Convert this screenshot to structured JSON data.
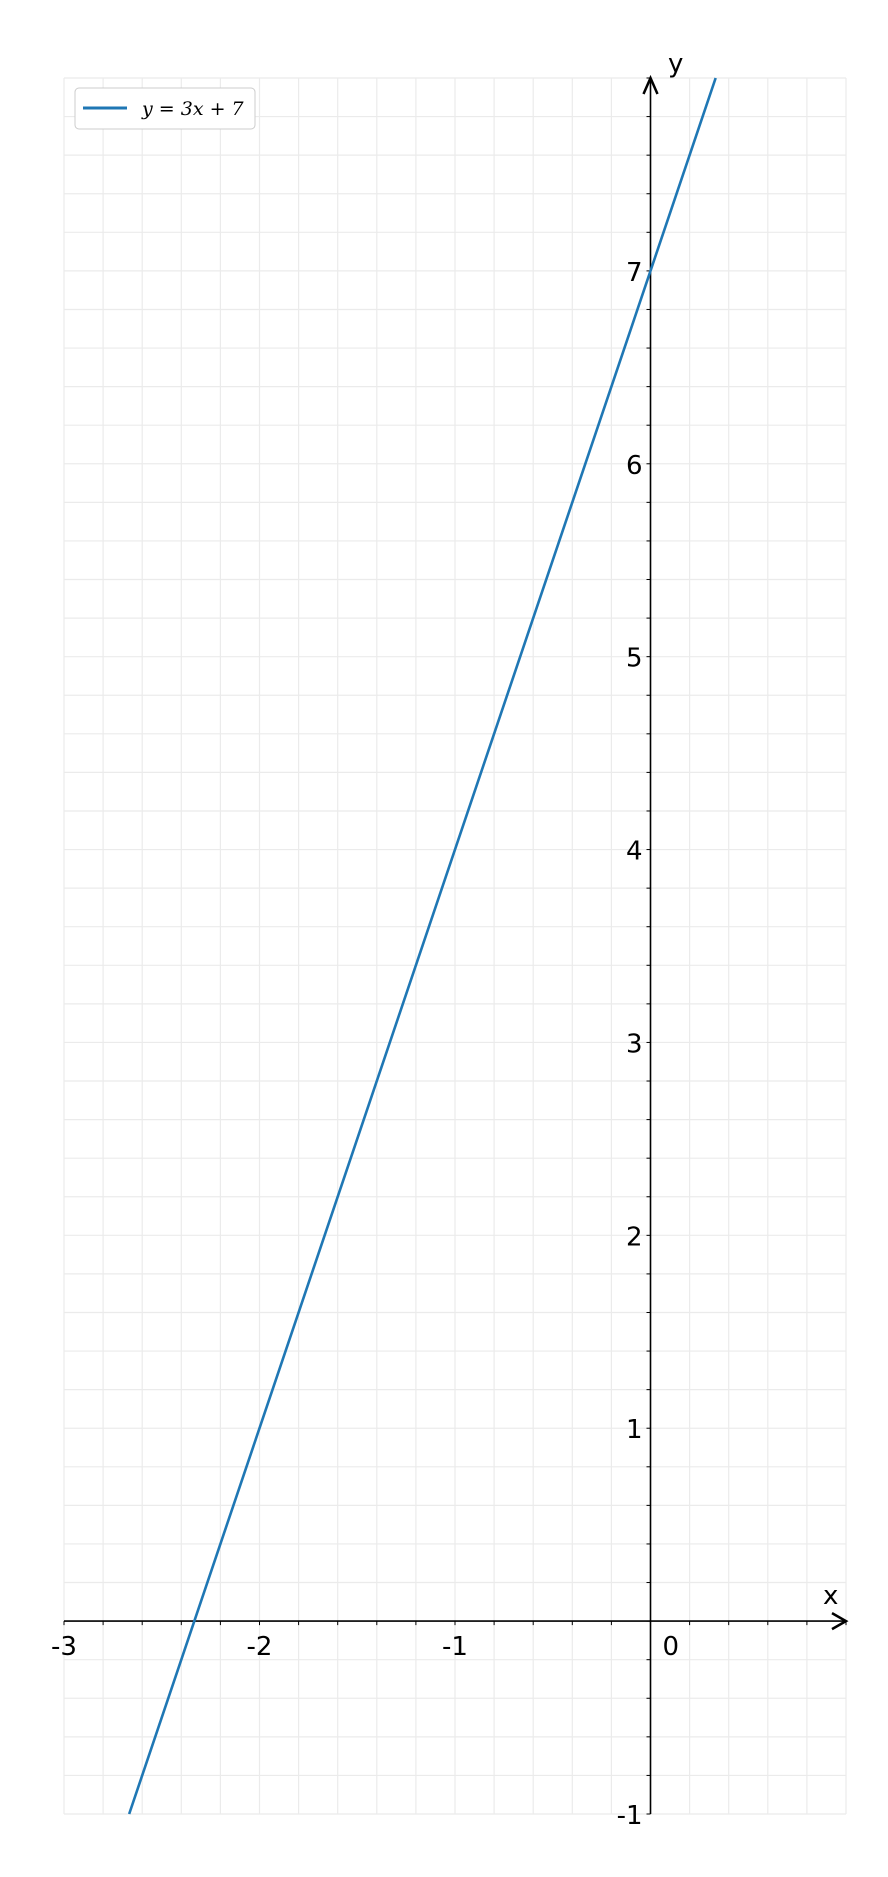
{
  "chart_data": {
    "type": "line",
    "title": "",
    "xlabel": "x",
    "ylabel": "y",
    "xlim": [
      -3,
      1
    ],
    "ylim": [
      -1,
      8
    ],
    "x_ticks": [
      -3,
      -2,
      -1,
      0
    ],
    "x_tick_labels": [
      "-3",
      "-2",
      "-1",
      "0"
    ],
    "y_ticks": [
      -1,
      1,
      2,
      3,
      4,
      5,
      6,
      7
    ],
    "y_tick_labels": [
      "-1",
      "1",
      "2",
      "3",
      "4",
      "5",
      "6",
      "7"
    ],
    "minor_grid_step": 0.2,
    "grid": true,
    "legend_placement": "top-left",
    "series": [
      {
        "name": "y = 3x + 7",
        "color": "#1f77b4",
        "slope": 3,
        "intercept": 7,
        "x": [
          -2.6667,
          0.3333
        ],
        "y": [
          -1,
          8
        ]
      }
    ]
  }
}
